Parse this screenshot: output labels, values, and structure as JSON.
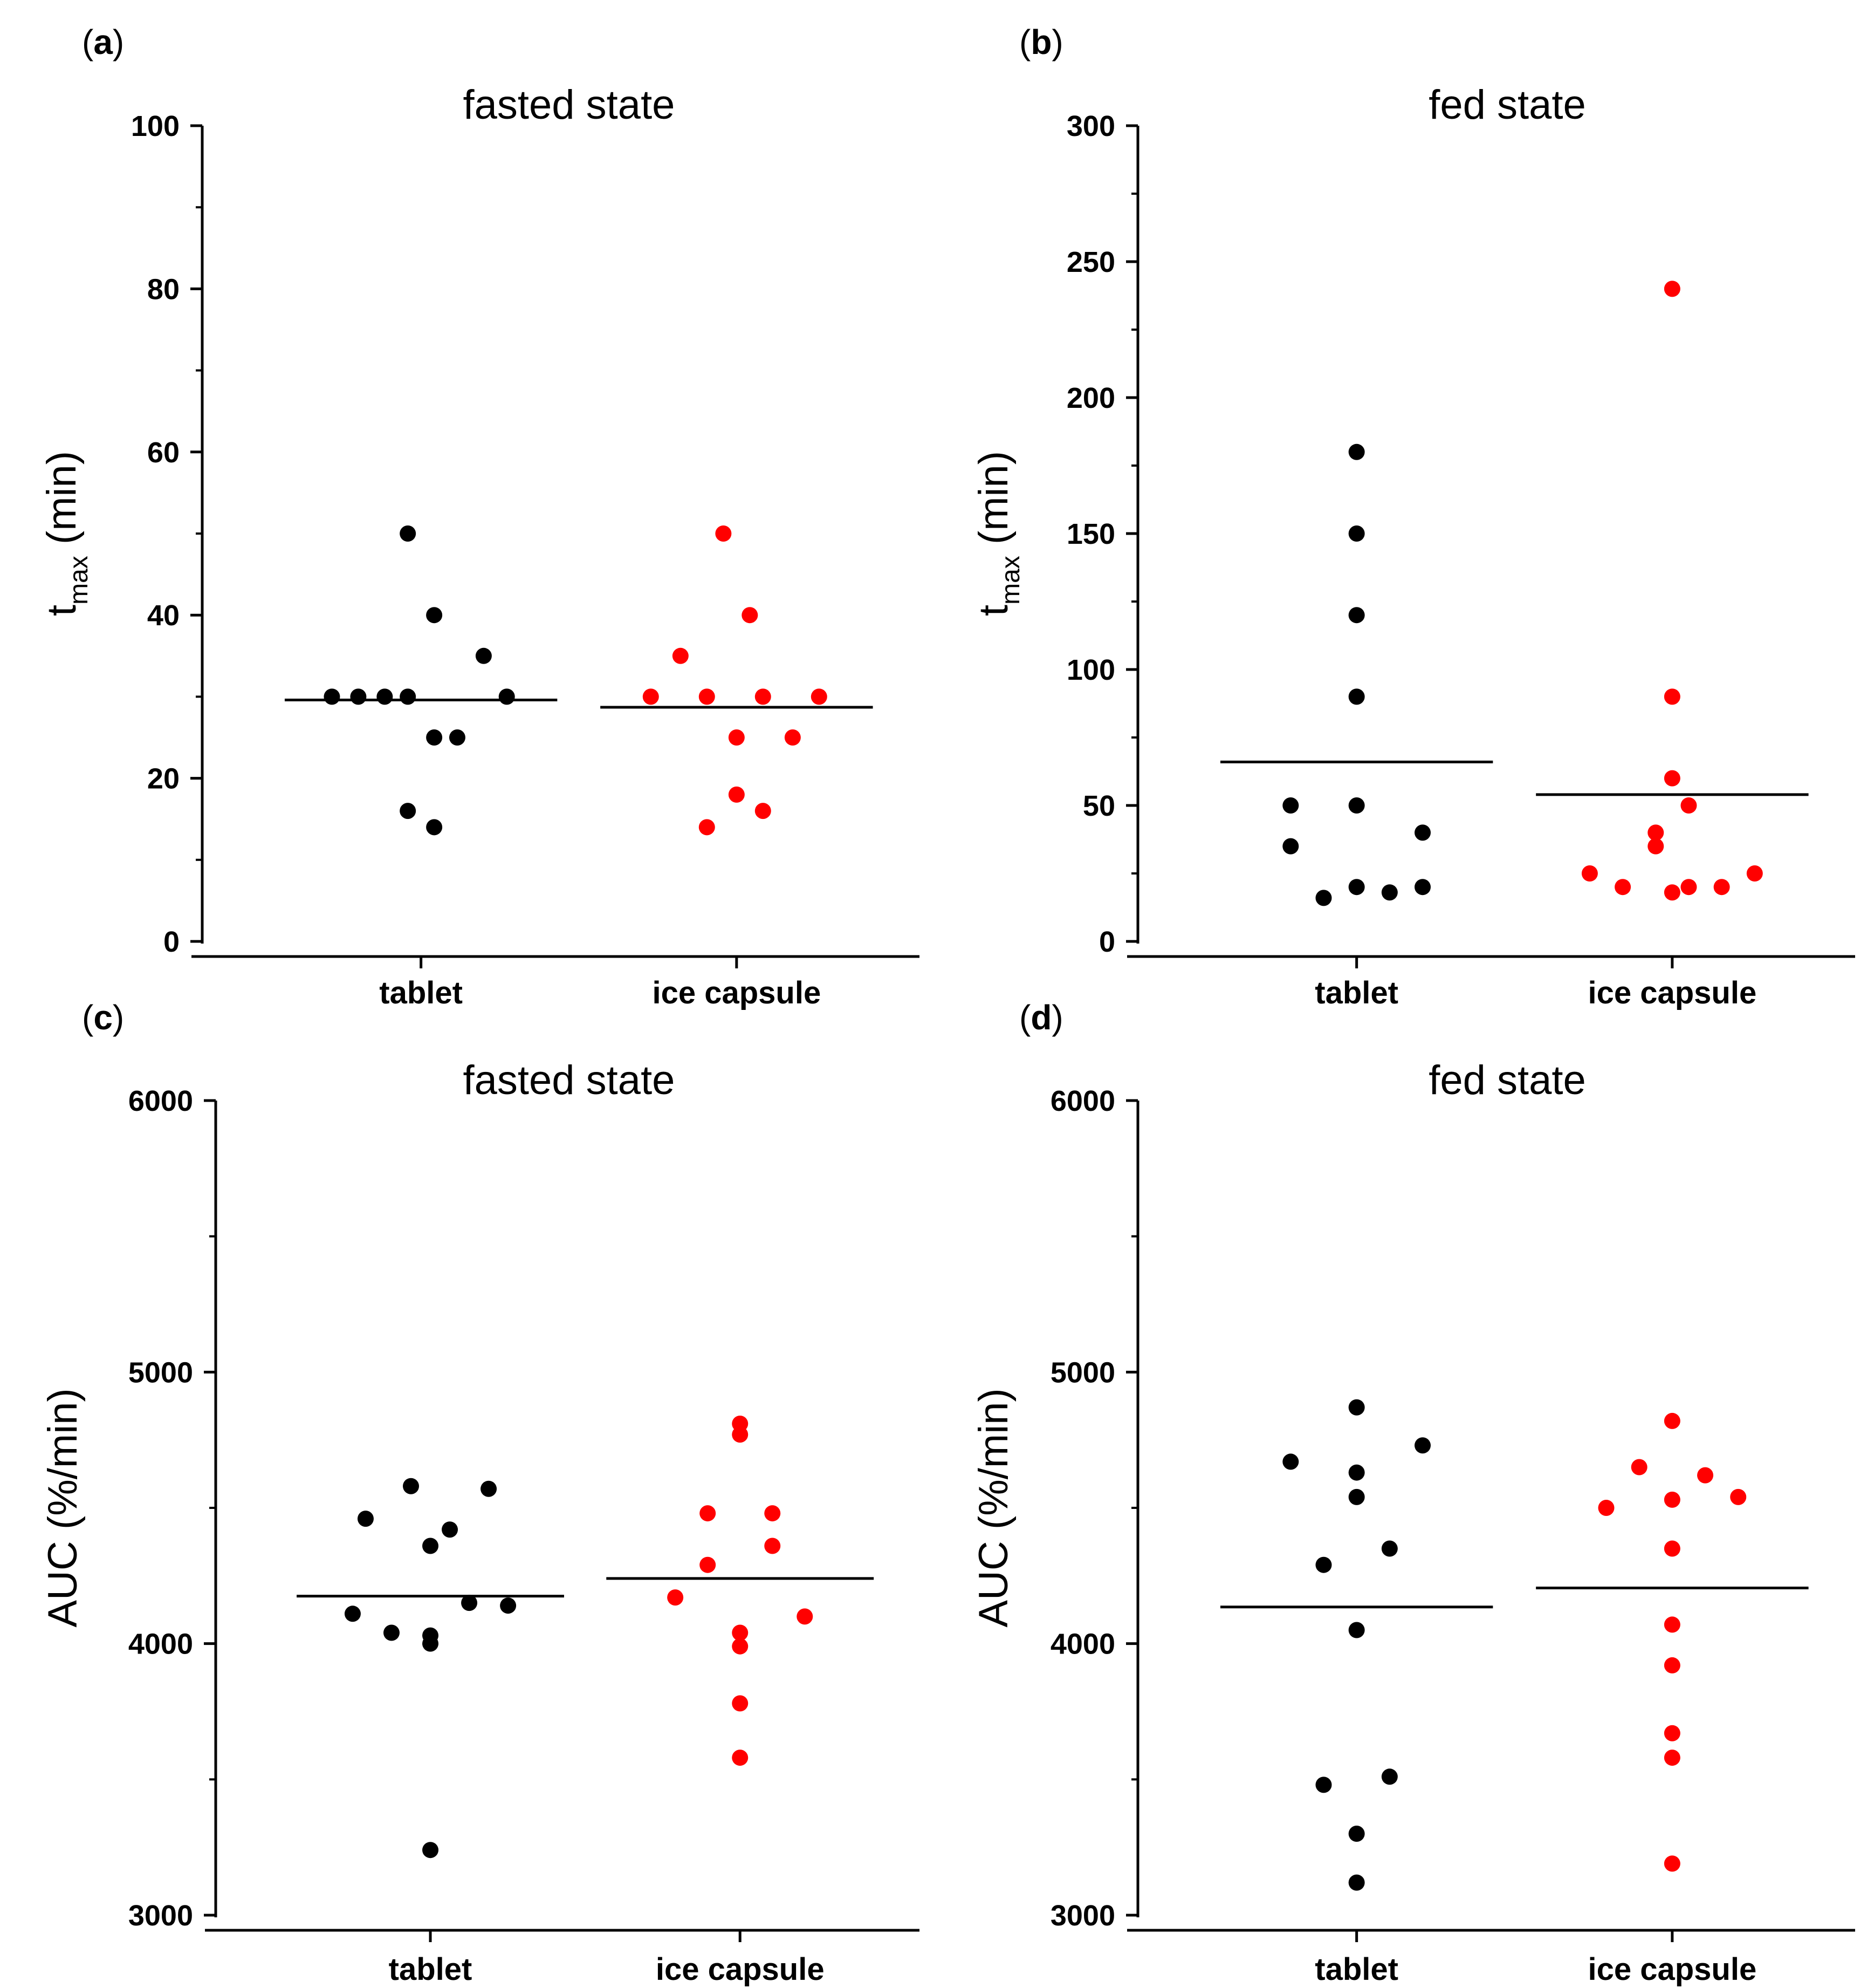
{
  "chart_data": [
    {
      "type": "scatter",
      "panel": "(a)",
      "title": "fasted state",
      "ylabel_main": "t",
      "ylabel_sub": "max",
      "ylabel_rest": " (min)",
      "ylim": [
        0,
        100
      ],
      "yticks": [
        0,
        20,
        40,
        60,
        80,
        100
      ],
      "ytick_labels": [
        "0",
        "20",
        "40",
        "60",
        "80",
        "100"
      ],
      "categories": [
        "tablet",
        "ice capsule"
      ],
      "series": [
        {
          "name": "tablet",
          "color": "#000000",
          "mean": 29.6,
          "points": [
            {
              "dx": -0.27,
              "y": 30
            },
            {
              "dx": -0.19,
              "y": 30
            },
            {
              "dx": -0.11,
              "y": 30
            },
            {
              "dx": -0.04,
              "y": 30
            },
            {
              "dx": -0.04,
              "y": 50
            },
            {
              "dx": 0.04,
              "y": 40
            },
            {
              "dx": 0.19,
              "y": 35
            },
            {
              "dx": 0.26,
              "y": 30
            },
            {
              "dx": 0.04,
              "y": 25
            },
            {
              "dx": 0.11,
              "y": 25
            },
            {
              "dx": -0.04,
              "y": 16
            },
            {
              "dx": 0.04,
              "y": 14
            }
          ]
        },
        {
          "name": "ice capsule",
          "color": "#ff0000",
          "mean": 28.7,
          "points": [
            {
              "dx": -0.26,
              "y": 30
            },
            {
              "dx": -0.17,
              "y": 35
            },
            {
              "dx": -0.09,
              "y": 30
            },
            {
              "dx": -0.04,
              "y": 50
            },
            {
              "dx": 0.04,
              "y": 40
            },
            {
              "dx": 0.08,
              "y": 30
            },
            {
              "dx": 0.25,
              "y": 30
            },
            {
              "dx": 0.0,
              "y": 25
            },
            {
              "dx": 0.17,
              "y": 25
            },
            {
              "dx": 0.0,
              "y": 18
            },
            {
              "dx": 0.08,
              "y": 16
            },
            {
              "dx": -0.09,
              "y": 14
            }
          ]
        }
      ]
    },
    {
      "type": "scatter",
      "panel": "(b)",
      "title": "fed state",
      "ylabel_main": "t",
      "ylabel_sub": "max",
      "ylabel_rest": " (min)",
      "ylim": [
        0,
        300
      ],
      "yticks": [
        0,
        50,
        100,
        150,
        200,
        250,
        300
      ],
      "ytick_labels": [
        "0",
        "50",
        "100",
        "150",
        "200",
        "250",
        "300"
      ],
      "categories": [
        "tablet",
        "ice capsule"
      ],
      "series": [
        {
          "name": "tablet",
          "color": "#000000",
          "mean": 66,
          "points": [
            {
              "dx": 0.0,
              "y": 180
            },
            {
              "dx": 0.0,
              "y": 150
            },
            {
              "dx": 0.0,
              "y": 120
            },
            {
              "dx": 0.0,
              "y": 90
            },
            {
              "dx": -0.2,
              "y": 50
            },
            {
              "dx": 0.0,
              "y": 50
            },
            {
              "dx": -0.2,
              "y": 35
            },
            {
              "dx": 0.2,
              "y": 40
            },
            {
              "dx": 0.0,
              "y": 20
            },
            {
              "dx": 0.2,
              "y": 20
            },
            {
              "dx": -0.1,
              "y": 16
            },
            {
              "dx": 0.1,
              "y": 18
            }
          ]
        },
        {
          "name": "ice capsule",
          "color": "#ff0000",
          "mean": 54,
          "points": [
            {
              "dx": 0.0,
              "y": 240
            },
            {
              "dx": 0.0,
              "y": 90
            },
            {
              "dx": 0.0,
              "y": 60
            },
            {
              "dx": 0.05,
              "y": 50
            },
            {
              "dx": -0.05,
              "y": 40
            },
            {
              "dx": -0.05,
              "y": 35
            },
            {
              "dx": -0.25,
              "y": 25
            },
            {
              "dx": 0.25,
              "y": 25
            },
            {
              "dx": -0.15,
              "y": 20
            },
            {
              "dx": 0.05,
              "y": 20
            },
            {
              "dx": 0.15,
              "y": 20
            },
            {
              "dx": 0.0,
              "y": 18
            }
          ]
        }
      ]
    },
    {
      "type": "scatter",
      "panel": "(c)",
      "title": "fasted state",
      "ylabel_main": "AUC (%/min)",
      "ylabel_sub": "",
      "ylabel_rest": "",
      "ylim": [
        3000,
        6000
      ],
      "yticks": [
        3000,
        4000,
        5000,
        6000
      ],
      "minor_step": 500,
      "ytick_labels": [
        "3000",
        "4000",
        "5000",
        "6000"
      ],
      "categories": [
        "tablet",
        "ice capsule"
      ],
      "series": [
        {
          "name": "tablet",
          "color": "#000000",
          "mean": 4175,
          "points": [
            {
              "dx": -0.2,
              "y": 4460
            },
            {
              "dx": -0.06,
              "y": 4580
            },
            {
              "dx": 0.18,
              "y": 4570
            },
            {
              "dx": 0.06,
              "y": 4420
            },
            {
              "dx": 0.0,
              "y": 4360
            },
            {
              "dx": 0.12,
              "y": 4150
            },
            {
              "dx": 0.24,
              "y": 4140
            },
            {
              "dx": -0.24,
              "y": 4110
            },
            {
              "dx": -0.12,
              "y": 4040
            },
            {
              "dx": 0.0,
              "y": 4030
            },
            {
              "dx": 0.0,
              "y": 4000
            },
            {
              "dx": 0.0,
              "y": 3240
            }
          ]
        },
        {
          "name": "ice capsule",
          "color": "#ff0000",
          "mean": 4240,
          "points": [
            {
              "dx": 0.0,
              "y": 4810
            },
            {
              "dx": 0.0,
              "y": 4770
            },
            {
              "dx": -0.1,
              "y": 4480
            },
            {
              "dx": 0.1,
              "y": 4480
            },
            {
              "dx": 0.1,
              "y": 4360
            },
            {
              "dx": -0.1,
              "y": 4290
            },
            {
              "dx": -0.2,
              "y": 4170
            },
            {
              "dx": 0.2,
              "y": 4100
            },
            {
              "dx": 0.0,
              "y": 4040
            },
            {
              "dx": 0.0,
              "y": 3990
            },
            {
              "dx": 0.0,
              "y": 3780
            },
            {
              "dx": 0.0,
              "y": 3580
            }
          ]
        }
      ]
    },
    {
      "type": "scatter",
      "panel": "(d)",
      "title": "fed state",
      "ylabel_main": "AUC (%/min)",
      "ylabel_sub": "",
      "ylabel_rest": "",
      "ylim": [
        3000,
        6000
      ],
      "yticks": [
        3000,
        4000,
        5000,
        6000
      ],
      "minor_step": 500,
      "ytick_labels": [
        "3000",
        "4000",
        "5000",
        "6000"
      ],
      "categories": [
        "tablet",
        "ice capsule"
      ],
      "series": [
        {
          "name": "tablet",
          "color": "#000000",
          "mean": 4135,
          "points": [
            {
              "dx": 0.0,
              "y": 4870
            },
            {
              "dx": 0.2,
              "y": 4730
            },
            {
              "dx": -0.2,
              "y": 4670
            },
            {
              "dx": 0.0,
              "y": 4630
            },
            {
              "dx": 0.0,
              "y": 4540
            },
            {
              "dx": 0.1,
              "y": 4350
            },
            {
              "dx": -0.1,
              "y": 4290
            },
            {
              "dx": 0.0,
              "y": 4050
            },
            {
              "dx": 0.1,
              "y": 3510
            },
            {
              "dx": -0.1,
              "y": 3480
            },
            {
              "dx": 0.0,
              "y": 3300
            },
            {
              "dx": 0.0,
              "y": 3120
            }
          ]
        },
        {
          "name": "ice capsule",
          "color": "#ff0000",
          "mean": 4205,
          "points": [
            {
              "dx": 0.0,
              "y": 4820
            },
            {
              "dx": -0.1,
              "y": 4650
            },
            {
              "dx": 0.1,
              "y": 4620
            },
            {
              "dx": 0.0,
              "y": 4530
            },
            {
              "dx": 0.2,
              "y": 4540
            },
            {
              "dx": -0.2,
              "y": 4500
            },
            {
              "dx": 0.0,
              "y": 4350
            },
            {
              "dx": 0.0,
              "y": 4070
            },
            {
              "dx": 0.0,
              "y": 3920
            },
            {
              "dx": 0.0,
              "y": 3670
            },
            {
              "dx": 0.0,
              "y": 3580
            },
            {
              "dx": 0.0,
              "y": 3190
            }
          ]
        }
      ]
    }
  ]
}
